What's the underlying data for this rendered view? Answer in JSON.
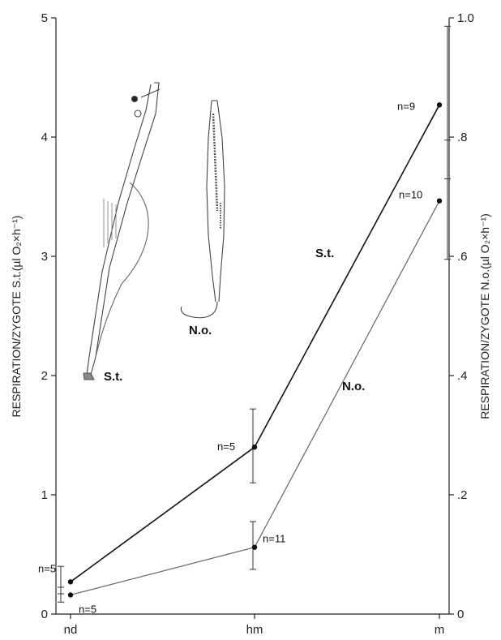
{
  "chart_data": {
    "type": "line",
    "categories": [
      "nd",
      "hm",
      "m"
    ],
    "y_left": {
      "label": "RESPIRATION/ZYGOTE S.t.(µl O₂×h⁻¹)",
      "range": [
        0,
        5
      ],
      "ticks": [
        "0",
        "1",
        "2",
        "3",
        "4",
        "5"
      ]
    },
    "y_right": {
      "label": "RESPIRATION/ZYGOTE N.o.(µl O₂×h⁻¹)",
      "range": [
        0,
        1
      ],
      "ticks": [
        "0",
        ".2",
        ".4",
        ".6",
        ".8",
        "1.0"
      ]
    },
    "series": [
      {
        "name": "S.t.",
        "axis": "left",
        "color": "#111111",
        "values": [
          0.27,
          1.4,
          4.27
        ],
        "error_low": [
          0.17,
          1.1,
          3.65
        ],
        "error_high": [
          0.4,
          1.72,
          4.93
        ],
        "n_labels": [
          "n=5",
          "n=5",
          "n=9"
        ]
      },
      {
        "name": "N.o.",
        "axis": "right",
        "color": "#666666",
        "values": [
          0.032,
          0.112,
          0.693
        ],
        "error_low": [
          0.02,
          0.075,
          0.595
        ],
        "error_high": [
          0.045,
          0.155,
          0.795
        ],
        "n_labels": [
          "n=5",
          "n=11",
          "n=10"
        ]
      }
    ],
    "annotations": {
      "series_label_st": "S.t.",
      "series_label_no": "N.o.",
      "inset_label_st": "S.t.",
      "inset_label_no": "N.o."
    }
  }
}
